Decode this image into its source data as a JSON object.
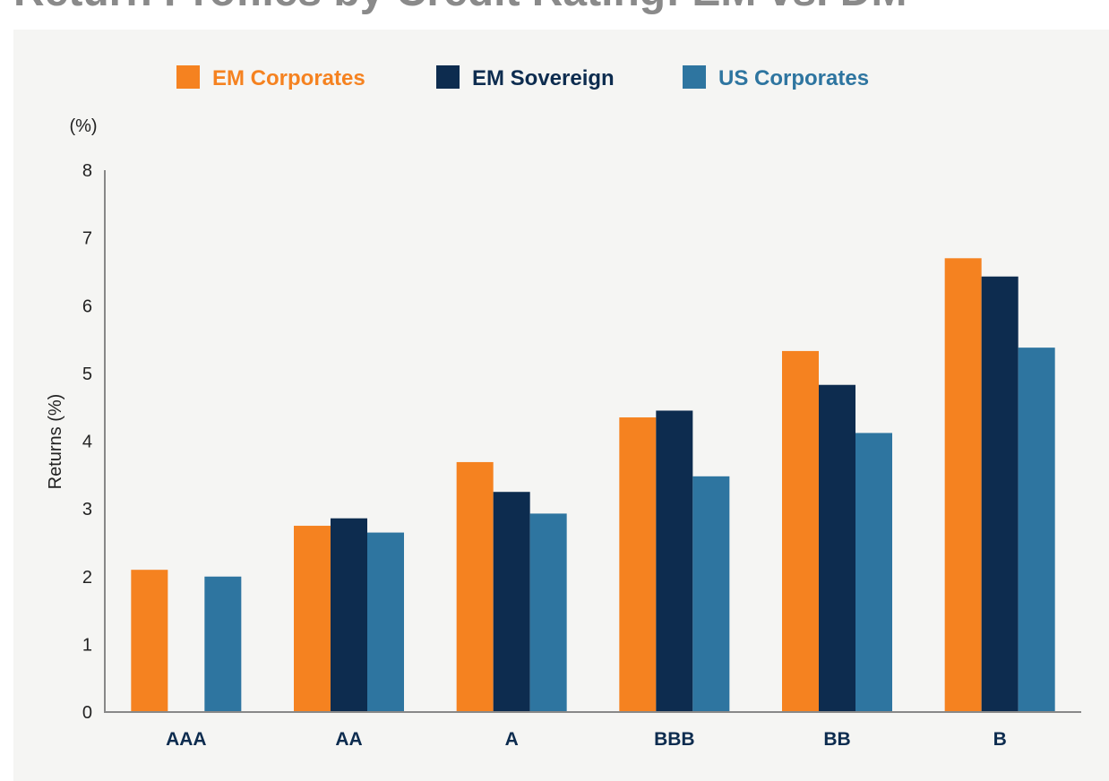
{
  "chart_data": {
    "type": "bar",
    "title": "Return Profiles by Credit Rating: EM vs. DM",
    "y_unit_label": "(%)",
    "y_axis_label": "Returns (%)",
    "categories": [
      "AAA",
      "AA",
      "A",
      "BBB",
      "BB",
      "B"
    ],
    "series": [
      {
        "name": "EM Corporates",
        "color": "#f58220",
        "values": [
          2.1,
          2.75,
          3.69,
          4.35,
          5.33,
          6.7
        ]
      },
      {
        "name": "EM Sovereign",
        "color": "#0d2c4f",
        "values": [
          null,
          2.86,
          3.25,
          4.45,
          4.83,
          6.43
        ]
      },
      {
        "name": "US Corporates",
        "color": "#2e75a0",
        "values": [
          2.0,
          2.65,
          2.93,
          3.48,
          4.12,
          5.38
        ]
      }
    ],
    "ylim": [
      0,
      8
    ],
    "yticks": [
      0,
      1,
      2,
      3,
      4,
      5,
      6,
      7,
      8
    ],
    "grid": false
  }
}
